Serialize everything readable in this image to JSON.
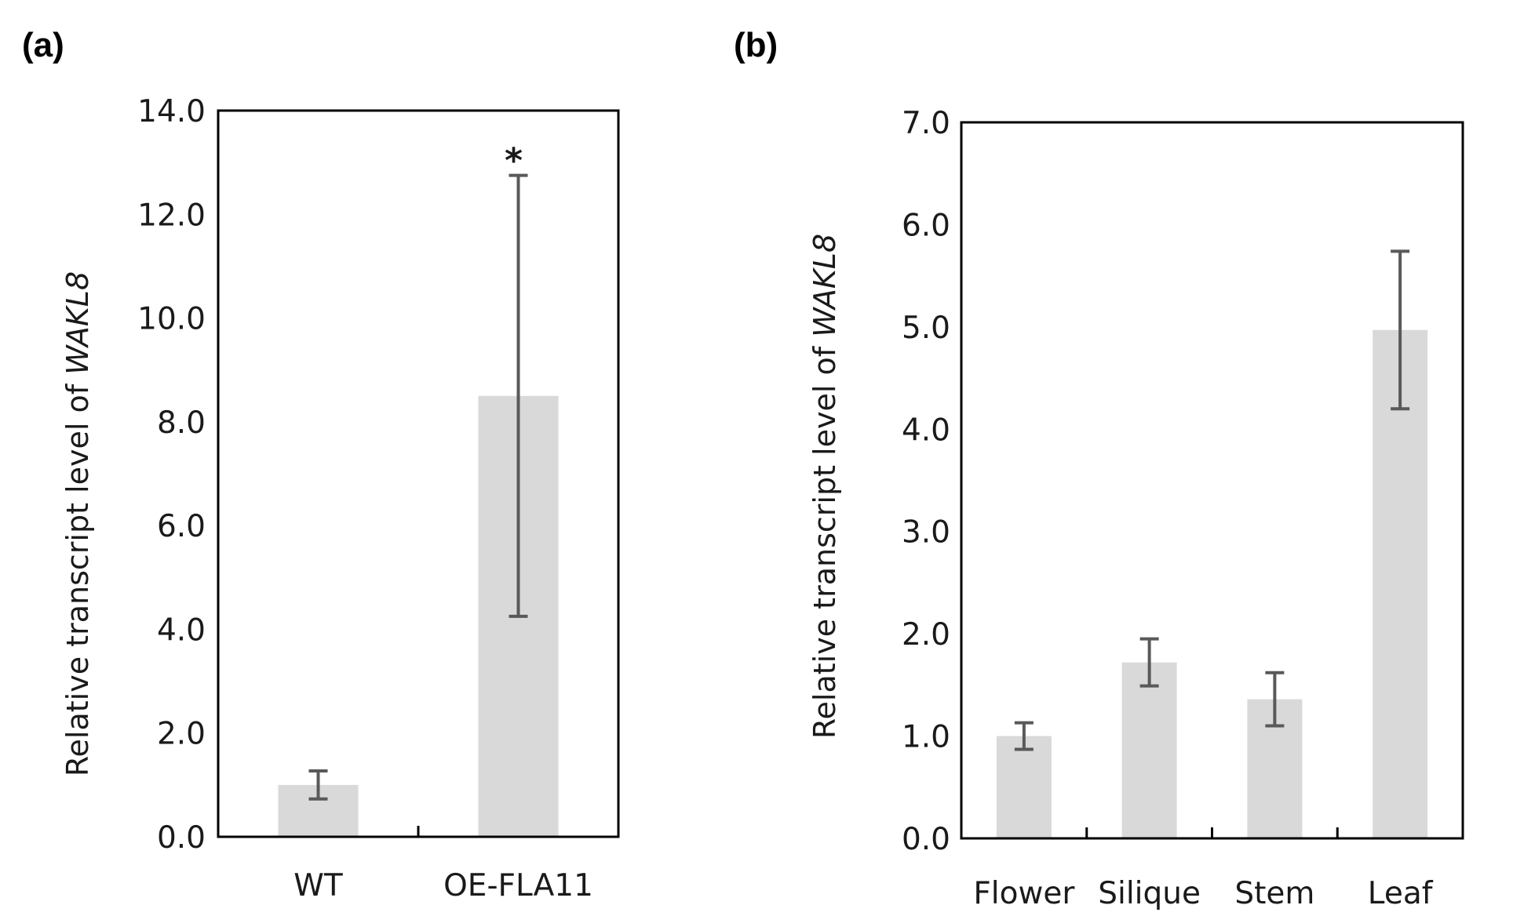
{
  "chart_data": [
    {
      "type": "bar",
      "panel_label": "(a)",
      "categories": [
        "WT",
        "OE-FLA11"
      ],
      "values": [
        1.0,
        8.5
      ],
      "errors": [
        0.27,
        4.25
      ],
      "annotations": [
        "",
        "*"
      ],
      "ylabel_prefix": "Relative transcript level of ",
      "ylabel_gene": "WAKL8",
      "ylim": [
        0,
        14
      ],
      "yticks": [
        "0.0",
        "2.0",
        "4.0",
        "6.0",
        "8.0",
        "10.0",
        "12.0",
        "14.0"
      ],
      "bar_color": "#d9d9d9",
      "error_color": "#595959"
    },
    {
      "type": "bar",
      "panel_label": "(b)",
      "categories": [
        "Flower",
        "Silique",
        "Stem",
        "Leaf"
      ],
      "values": [
        1.0,
        1.72,
        1.36,
        4.97
      ],
      "errors": [
        0.13,
        0.23,
        0.26,
        0.77
      ],
      "annotations": [
        "",
        "",
        "",
        ""
      ],
      "ylabel_prefix": "Relative transcript level of ",
      "ylabel_gene": "WAKL8",
      "ylim": [
        0,
        7
      ],
      "yticks": [
        "0.0",
        "1.0",
        "2.0",
        "3.0",
        "4.0",
        "5.0",
        "6.0",
        "7.0"
      ],
      "bar_color": "#d9d9d9",
      "error_color": "#595959"
    }
  ]
}
